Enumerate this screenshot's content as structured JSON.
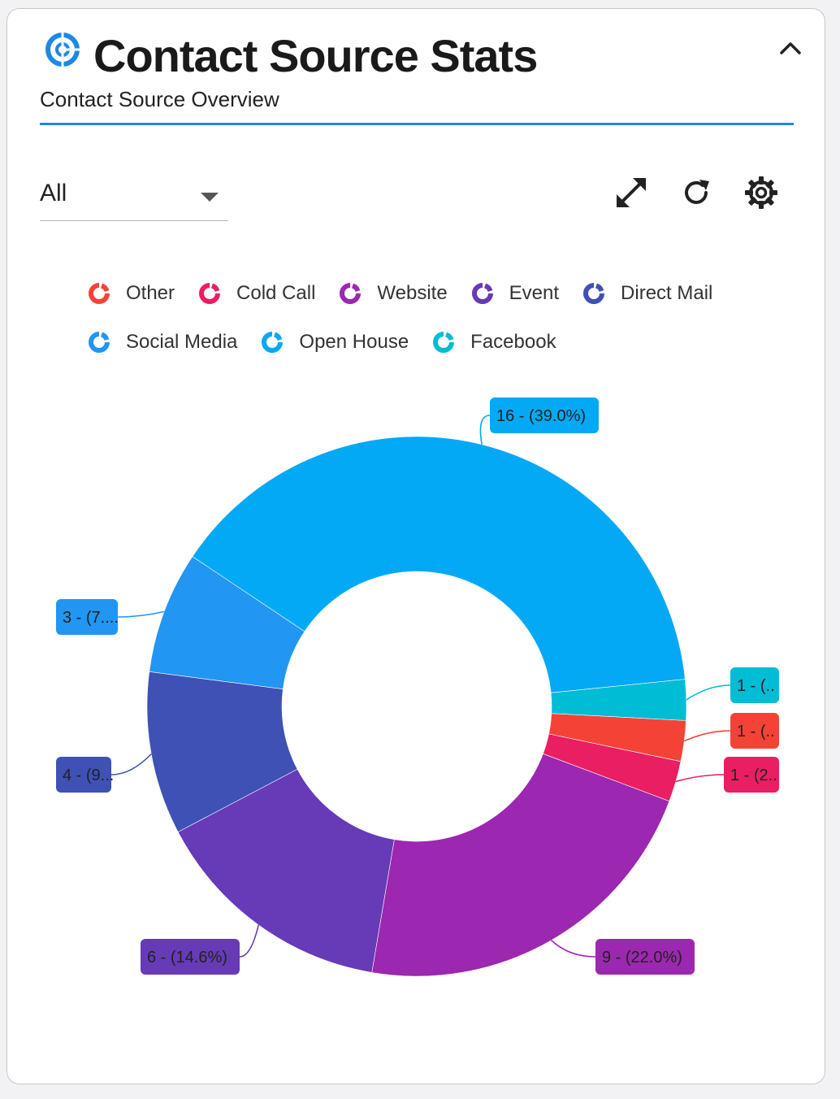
{
  "header": {
    "title": "Contact Source Stats",
    "subtitle": "Contact Source Overview",
    "icon": "chart-donut-icon",
    "accent": "#1e88e5"
  },
  "filter": {
    "selected": "All"
  },
  "toolbar": {
    "expand_icon": "expand-icon",
    "refresh_icon": "refresh-icon",
    "settings_icon": "gear-icon",
    "collapse_icon": "chevron-up-icon"
  },
  "chart_data": {
    "type": "pie",
    "donut": true,
    "legend_position": "top",
    "categories": [
      "Other",
      "Cold Call",
      "Website",
      "Event",
      "Direct Mail",
      "Social Media",
      "Open House",
      "Facebook"
    ],
    "values": [
      1,
      1,
      9,
      6,
      4,
      3,
      16,
      1
    ],
    "colors": [
      "#f44336",
      "#e91e63",
      "#9c27b0",
      "#673ab7",
      "#3f51b5",
      "#2196f3",
      "#03a9f4",
      "#00bcd4"
    ],
    "data_labels": [
      "1 - (..",
      "1 - (2..",
      "9 - (22.0%)",
      "6 - (14.6%)",
      "4 - (9...",
      "3 - (7....",
      "16 - (39.0%)",
      "1 - (.."
    ]
  }
}
